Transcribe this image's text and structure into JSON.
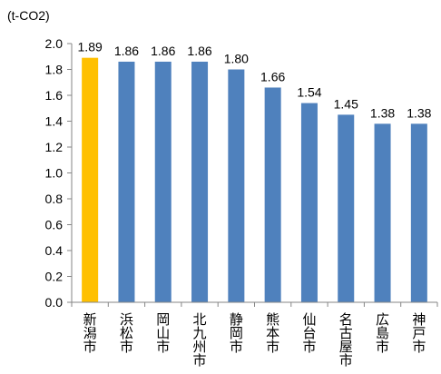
{
  "chart_data": {
    "type": "bar",
    "title": "",
    "unit_label": "(t-CO2)",
    "xlabel": "",
    "ylabel": "",
    "ylim": [
      0,
      2.0
    ],
    "ytick_step": 0.2,
    "ytick_labels": [
      "0.0",
      "0.2",
      "0.4",
      "0.6",
      "0.8",
      "1.0",
      "1.2",
      "1.4",
      "1.6",
      "1.8",
      "2.0"
    ],
    "categories": [
      "新潟市",
      "浜松市",
      "岡山市",
      "北九州市",
      "静岡市",
      "熊本市",
      "仙台市",
      "名古屋市",
      "広島市",
      "神戸市"
    ],
    "values": [
      1.89,
      1.86,
      1.86,
      1.86,
      1.8,
      1.66,
      1.54,
      1.45,
      1.38,
      1.38
    ],
    "value_labels": [
      "1.89",
      "1.86",
      "1.86",
      "1.86",
      "1.80",
      "1.66",
      "1.54",
      "1.45",
      "1.38",
      "1.38"
    ],
    "highlight_index": 0,
    "colors": {
      "bar": "#4f81bd",
      "highlight": "#ffc000",
      "axis": "#868686"
    },
    "grid": false,
    "legend": "none"
  }
}
